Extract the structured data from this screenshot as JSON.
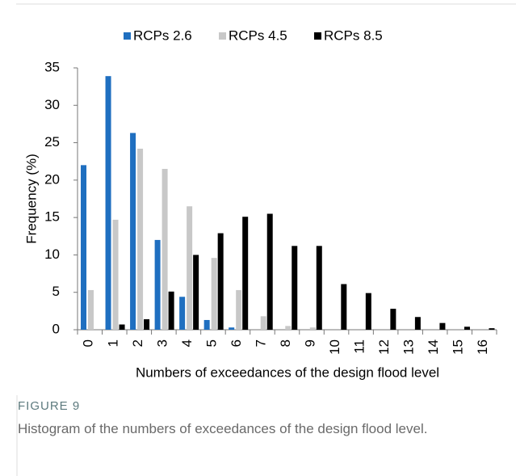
{
  "chart_data": {
    "type": "bar",
    "y_label": "Frequency (%)",
    "x_label": "Numbers of exceedances of the design flood level",
    "categories": [
      "0",
      "1",
      "2",
      "3",
      "4",
      "5",
      "6",
      "7",
      "8",
      "9",
      "10",
      "11",
      "12",
      "13",
      "14",
      "15",
      "16"
    ],
    "series": [
      {
        "name": "RCPs 2.6",
        "color": "#1f6fc0",
        "values": [
          22,
          33.9,
          26.3,
          12,
          4.4,
          1.3,
          0.3,
          0,
          0,
          0,
          0,
          0,
          0,
          0,
          0,
          0,
          0
        ]
      },
      {
        "name": "RCPs 4.5",
        "color": "#c8c8c8",
        "values": [
          5.3,
          14.7,
          24.2,
          21.5,
          16.5,
          9.6,
          5.3,
          1.8,
          0.5,
          0.3,
          0,
          0,
          0,
          0,
          0,
          0,
          0
        ]
      },
      {
        "name": "RCPs 8.5",
        "color": "#000000",
        "values": [
          0,
          0.7,
          1.4,
          5.1,
          10,
          12.9,
          15.1,
          15.5,
          11.2,
          11.2,
          6.1,
          4.9,
          2.8,
          1.7,
          0.9,
          0.4,
          0.2
        ]
      }
    ],
    "ylim": [
      0,
      35
    ],
    "yticks": [
      0,
      5,
      10,
      15,
      20,
      25,
      30,
      35
    ],
    "grid": false,
    "legend": "top"
  },
  "caption": {
    "label": "FIGURE 9",
    "text": "Histogram of the numbers of exceedances of the design flood level."
  }
}
